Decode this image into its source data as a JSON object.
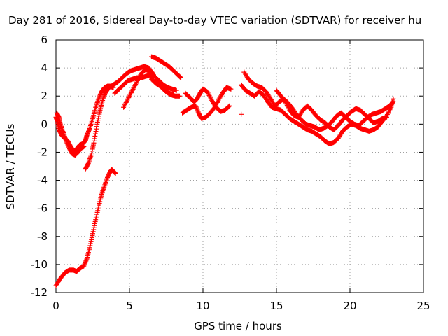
{
  "chart_data": {
    "type": "scatter",
    "title": "Day 281 of 2016, Sidereal Day-to-day VTEC variation (SDTVAR) for receiver hu",
    "xlabel": "GPS time / hours",
    "ylabel": "SDTVAR / TECUs",
    "xlim": [
      0,
      25
    ],
    "ylim": [
      -12,
      6
    ],
    "xticks": [
      0,
      5,
      10,
      15,
      20,
      25
    ],
    "yticks": [
      -12,
      -10,
      -8,
      -6,
      -4,
      -2,
      0,
      2,
      4,
      6
    ],
    "grid": true,
    "marker": "plus",
    "color": "#ff0000",
    "series": [
      {
        "values": [
          [
            0.0,
            -11.5
          ],
          [
            0.3,
            -11.0
          ],
          [
            0.6,
            -10.6
          ],
          [
            0.9,
            -10.4
          ],
          [
            1.2,
            -10.4
          ],
          [
            1.4,
            -10.5
          ],
          [
            1.6,
            -10.3
          ],
          [
            1.9,
            -10.1
          ],
          [
            2.1,
            -9.6
          ],
          [
            2.3,
            -8.8
          ],
          [
            2.5,
            -7.8
          ],
          [
            2.7,
            -6.8
          ],
          [
            2.9,
            -5.9
          ],
          [
            3.1,
            -5.0
          ],
          [
            3.3,
            -4.4
          ],
          [
            3.5,
            -3.8
          ],
          [
            3.7,
            -3.35
          ],
          [
            3.8,
            -3.25
          ],
          [
            3.9,
            -3.35
          ],
          [
            4.05,
            -3.5
          ]
        ]
      },
      {
        "values": [
          [
            0.0,
            0.5
          ],
          [
            0.1,
            0.2
          ],
          [
            0.2,
            -0.4
          ],
          [
            0.4,
            -0.8
          ],
          [
            0.6,
            -1.0
          ],
          [
            0.8,
            -1.2
          ],
          [
            1.0,
            -1.6
          ],
          [
            1.2,
            -1.9
          ],
          [
            1.4,
            -1.8
          ],
          [
            1.6,
            -1.5
          ],
          [
            1.8,
            -1.4
          ],
          [
            2.0,
            -1.2
          ],
          [
            2.1,
            -0.8
          ],
          [
            2.3,
            -0.3
          ],
          [
            2.5,
            0.4
          ],
          [
            2.7,
            1.2
          ],
          [
            2.9,
            1.8
          ],
          [
            3.1,
            2.3
          ],
          [
            3.3,
            2.6
          ],
          [
            3.5,
            2.7
          ],
          [
            3.7,
            2.7
          ],
          [
            3.9,
            2.6
          ]
        ]
      },
      {
        "values": [
          [
            0.05,
            0.8
          ],
          [
            0.2,
            0.5
          ],
          [
            0.3,
            0.0
          ],
          [
            0.5,
            -0.6
          ],
          [
            0.7,
            -1.2
          ],
          [
            0.9,
            -1.7
          ],
          [
            1.1,
            -2.1
          ],
          [
            1.3,
            -2.2
          ],
          [
            1.5,
            -2.0
          ],
          [
            1.7,
            -1.7
          ],
          [
            1.9,
            -1.6
          ]
        ]
      },
      {
        "values": [
          [
            2.0,
            -3.2
          ],
          [
            2.2,
            -2.8
          ],
          [
            2.4,
            -2.2
          ],
          [
            2.6,
            -1.2
          ],
          [
            2.8,
            0.0
          ],
          [
            3.0,
            1.0
          ],
          [
            3.2,
            1.8
          ],
          [
            3.4,
            2.3
          ],
          [
            3.6,
            2.6
          ],
          [
            3.9,
            2.8
          ],
          [
            4.2,
            3.0
          ],
          [
            4.5,
            3.3
          ],
          [
            4.8,
            3.6
          ],
          [
            5.1,
            3.8
          ],
          [
            5.4,
            3.9
          ],
          [
            5.7,
            4.0
          ],
          [
            6.0,
            4.1
          ],
          [
            6.3,
            4.0
          ],
          [
            6.6,
            3.6
          ],
          [
            6.9,
            3.0
          ],
          [
            7.2,
            2.6
          ],
          [
            7.5,
            2.3
          ],
          [
            7.8,
            2.1
          ],
          [
            8.1,
            2.0
          ],
          [
            8.4,
            2.0
          ]
        ]
      },
      {
        "values": [
          [
            4.0,
            2.2
          ],
          [
            4.3,
            2.5
          ],
          [
            4.6,
            2.8
          ],
          [
            4.9,
            3.1
          ],
          [
            5.2,
            3.2
          ],
          [
            5.5,
            3.3
          ],
          [
            5.8,
            3.3
          ],
          [
            6.1,
            3.4
          ],
          [
            6.4,
            3.5
          ],
          [
            6.7,
            3.4
          ],
          [
            7.0,
            3.1
          ],
          [
            7.3,
            2.8
          ],
          [
            7.6,
            2.6
          ],
          [
            7.9,
            2.5
          ],
          [
            8.2,
            2.4
          ]
        ]
      },
      {
        "values": [
          [
            4.6,
            1.2
          ],
          [
            4.9,
            1.8
          ],
          [
            5.2,
            2.4
          ],
          [
            5.5,
            3.0
          ],
          [
            5.8,
            3.6
          ],
          [
            6.1,
            3.9
          ],
          [
            6.3,
            3.8
          ],
          [
            6.5,
            3.2
          ],
          [
            6.8,
            2.9
          ],
          [
            7.1,
            2.7
          ],
          [
            7.4,
            2.4
          ],
          [
            7.7,
            2.2
          ],
          [
            8.0,
            2.1
          ]
        ]
      },
      {
        "values": [
          [
            6.5,
            4.8
          ],
          [
            6.8,
            4.7
          ],
          [
            7.1,
            4.5
          ],
          [
            7.4,
            4.3
          ],
          [
            7.7,
            4.1
          ],
          [
            8.0,
            3.8
          ],
          [
            8.3,
            3.5
          ],
          [
            8.5,
            3.3
          ]
        ]
      },
      {
        "values": [
          [
            8.6,
            0.8
          ],
          [
            8.9,
            1.0
          ],
          [
            9.2,
            1.2
          ],
          [
            9.5,
            1.3
          ],
          [
            9.7,
            0.8
          ],
          [
            9.9,
            0.4
          ],
          [
            10.2,
            0.5
          ],
          [
            10.5,
            0.8
          ],
          [
            10.8,
            1.2
          ],
          [
            11.1,
            1.8
          ],
          [
            11.4,
            2.3
          ],
          [
            11.6,
            2.6
          ],
          [
            11.9,
            2.5
          ]
        ]
      },
      {
        "values": [
          [
            8.8,
            2.2
          ],
          [
            9.1,
            1.9
          ],
          [
            9.4,
            1.6
          ],
          [
            9.6,
            1.8
          ],
          [
            9.8,
            2.2
          ],
          [
            10.0,
            2.5
          ],
          [
            10.3,
            2.3
          ],
          [
            10.6,
            1.7
          ],
          [
            10.9,
            1.2
          ],
          [
            11.2,
            0.9
          ],
          [
            11.5,
            1.0
          ],
          [
            11.8,
            1.3
          ]
        ]
      },
      {
        "values": [
          [
            12.6,
            0.7
          ]
        ]
      },
      {
        "values": [
          [
            12.6,
            2.8
          ],
          [
            12.9,
            2.4
          ],
          [
            13.2,
            2.2
          ],
          [
            13.5,
            2.0
          ],
          [
            13.8,
            2.3
          ],
          [
            14.1,
            2.1
          ],
          [
            14.4,
            1.6
          ],
          [
            14.7,
            1.2
          ],
          [
            15.0,
            1.1
          ],
          [
            15.3,
            1.0
          ],
          [
            15.6,
            0.7
          ],
          [
            15.9,
            0.4
          ],
          [
            16.2,
            0.2
          ],
          [
            16.5,
            0.0
          ],
          [
            16.8,
            -0.2
          ],
          [
            17.1,
            -0.4
          ],
          [
            17.4,
            -0.5
          ],
          [
            17.7,
            -0.7
          ],
          [
            18.0,
            -0.9
          ],
          [
            18.3,
            -1.2
          ],
          [
            18.6,
            -1.4
          ],
          [
            18.9,
            -1.3
          ],
          [
            19.2,
            -1.0
          ],
          [
            19.5,
            -0.5
          ],
          [
            19.8,
            -0.2
          ],
          [
            20.1,
            0.0
          ],
          [
            20.4,
            -0.1
          ],
          [
            20.7,
            -0.3
          ],
          [
            21.0,
            -0.4
          ],
          [
            21.3,
            -0.5
          ],
          [
            21.6,
            -0.4
          ],
          [
            21.9,
            -0.2
          ],
          [
            22.2,
            0.2
          ],
          [
            22.5,
            0.6
          ],
          [
            22.8,
            1.2
          ],
          [
            22.95,
            1.8
          ]
        ]
      },
      {
        "values": [
          [
            12.8,
            3.7
          ],
          [
            13.1,
            3.2
          ],
          [
            13.4,
            2.9
          ],
          [
            13.7,
            2.7
          ],
          [
            14.0,
            2.6
          ],
          [
            14.3,
            2.3
          ],
          [
            14.6,
            1.8
          ],
          [
            14.9,
            1.3
          ],
          [
            15.2,
            1.6
          ],
          [
            15.5,
            1.8
          ],
          [
            15.8,
            1.5
          ],
          [
            16.1,
            1.1
          ],
          [
            16.4,
            0.6
          ],
          [
            16.7,
            0.3
          ],
          [
            17.0,
            0.0
          ],
          [
            17.3,
            -0.1
          ],
          [
            17.6,
            -0.2
          ],
          [
            17.9,
            -0.4
          ],
          [
            18.2,
            -0.3
          ],
          [
            18.5,
            -0.1
          ],
          [
            18.8,
            0.2
          ],
          [
            19.1,
            0.6
          ],
          [
            19.4,
            0.8
          ],
          [
            19.7,
            0.5
          ],
          [
            20.0,
            0.2
          ],
          [
            20.3,
            0.0
          ],
          [
            20.6,
            -0.1
          ],
          [
            20.9,
            0.2
          ],
          [
            21.2,
            0.5
          ],
          [
            21.5,
            0.7
          ],
          [
            21.8,
            0.8
          ],
          [
            22.1,
            0.9
          ],
          [
            22.4,
            1.1
          ],
          [
            22.7,
            1.3
          ],
          [
            22.95,
            1.6
          ]
        ]
      },
      {
        "values": [
          [
            15.0,
            2.4
          ],
          [
            15.3,
            2.0
          ],
          [
            15.6,
            1.6
          ],
          [
            15.9,
            1.0
          ],
          [
            16.2,
            0.6
          ],
          [
            16.5,
            0.5
          ],
          [
            16.8,
            1.0
          ],
          [
            17.1,
            1.3
          ],
          [
            17.4,
            1.0
          ],
          [
            17.7,
            0.6
          ],
          [
            18.0,
            0.3
          ],
          [
            18.3,
            0.1
          ],
          [
            18.6,
            -0.2
          ],
          [
            18.9,
            -0.4
          ],
          [
            19.2,
            -0.1
          ],
          [
            19.5,
            0.3
          ],
          [
            19.8,
            0.6
          ],
          [
            20.1,
            0.9
          ],
          [
            20.4,
            1.1
          ],
          [
            20.7,
            1.0
          ],
          [
            21.0,
            0.7
          ],
          [
            21.3,
            0.4
          ],
          [
            21.6,
            0.1
          ],
          [
            21.9,
            0.2
          ],
          [
            22.2,
            0.4
          ],
          [
            22.5,
            0.5
          ]
        ]
      }
    ]
  }
}
